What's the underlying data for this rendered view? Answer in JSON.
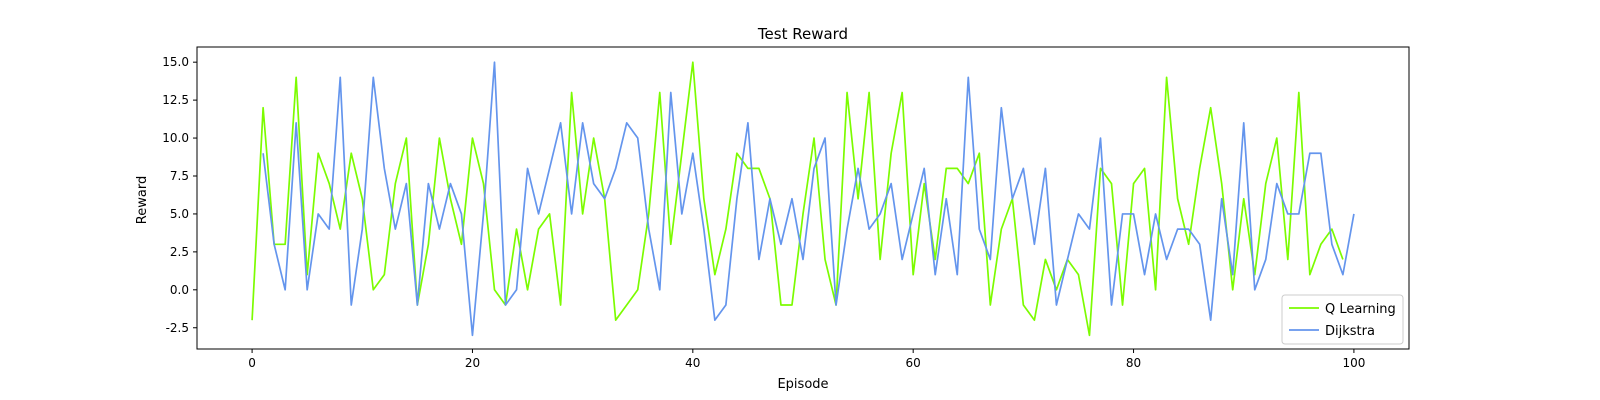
{
  "chart_data": {
    "type": "line",
    "title": "Test Reward",
    "xlabel": "Episode",
    "ylabel": "Reward",
    "xlim": [
      -5,
      105
    ],
    "ylim": [
      -3.9,
      16.0
    ],
    "xticks": [
      0,
      20,
      40,
      60,
      80,
      100
    ],
    "yticks": [
      -2.5,
      0.0,
      2.5,
      5.0,
      7.5,
      10.0,
      12.5,
      15.0
    ],
    "grid": false,
    "legend_position": "lower-right",
    "x": [
      0,
      1,
      2,
      3,
      4,
      5,
      6,
      7,
      8,
      9,
      10,
      11,
      12,
      13,
      14,
      15,
      16,
      17,
      18,
      19,
      20,
      21,
      22,
      23,
      24,
      25,
      26,
      27,
      28,
      29,
      30,
      31,
      32,
      33,
      34,
      35,
      36,
      37,
      38,
      39,
      40,
      41,
      42,
      43,
      44,
      45,
      46,
      47,
      48,
      49,
      50,
      51,
      52,
      53,
      54,
      55,
      56,
      57,
      58,
      59,
      60,
      61,
      62,
      63,
      64,
      65,
      66,
      67,
      68,
      69,
      70,
      71,
      72,
      73,
      74,
      75,
      76,
      77,
      78,
      79,
      80,
      81,
      82,
      83,
      84,
      85,
      86,
      87,
      88,
      89,
      90,
      91,
      92,
      93,
      94,
      95,
      96,
      97,
      98,
      99,
      100
    ],
    "series": [
      {
        "name": "Q Learning",
        "color": "#7CFC00",
        "values": [
          -2,
          12,
          3,
          3,
          14,
          1,
          9,
          7,
          4,
          9,
          6,
          0,
          1,
          7,
          10,
          -1,
          3,
          10,
          6,
          3,
          10,
          7,
          0,
          -1,
          4,
          0,
          4,
          5,
          -1,
          13,
          5,
          10,
          6,
          -2,
          -1,
          0,
          5,
          13,
          3,
          9,
          15,
          6,
          1,
          4,
          9,
          8,
          8,
          6,
          -1,
          -1,
          5,
          10,
          2,
          -1,
          13,
          6,
          13,
          2,
          9,
          13,
          1,
          7,
          2,
          8,
          8,
          7,
          9,
          -1,
          4,
          6,
          -1,
          -2,
          2,
          0,
          2,
          1,
          -3,
          8,
          7,
          -1,
          7,
          8,
          0,
          14,
          6,
          3,
          8,
          12,
          7,
          0,
          6,
          1,
          7,
          10,
          2,
          13,
          1,
          3,
          4,
          2,
          null
        ]
      },
      {
        "name": "Dijkstra",
        "color": "#6495ED",
        "values": [
          null,
          9,
          3,
          0,
          11,
          0,
          5,
          4,
          14,
          -1,
          4,
          14,
          8,
          4,
          7,
          -1,
          7,
          4,
          7,
          5,
          -3,
          5,
          15,
          -1,
          0,
          8,
          5,
          8,
          11,
          5,
          11,
          7,
          6,
          8,
          11,
          10,
          4,
          0,
          13,
          5,
          9,
          4,
          -2,
          -1,
          6,
          11,
          2,
          6,
          3,
          6,
          2,
          8,
          10,
          -1,
          4,
          8,
          4,
          5,
          7,
          2,
          5,
          8,
          1,
          6,
          1,
          14,
          4,
          2,
          12,
          6,
          8,
          3,
          8,
          -1,
          2,
          5,
          4,
          10,
          -1,
          5,
          5,
          1,
          5,
          2,
          4,
          4,
          3,
          -2,
          6,
          1,
          11,
          0,
          2,
          7,
          5,
          5,
          9,
          9,
          3,
          1,
          5
        ]
      }
    ]
  }
}
